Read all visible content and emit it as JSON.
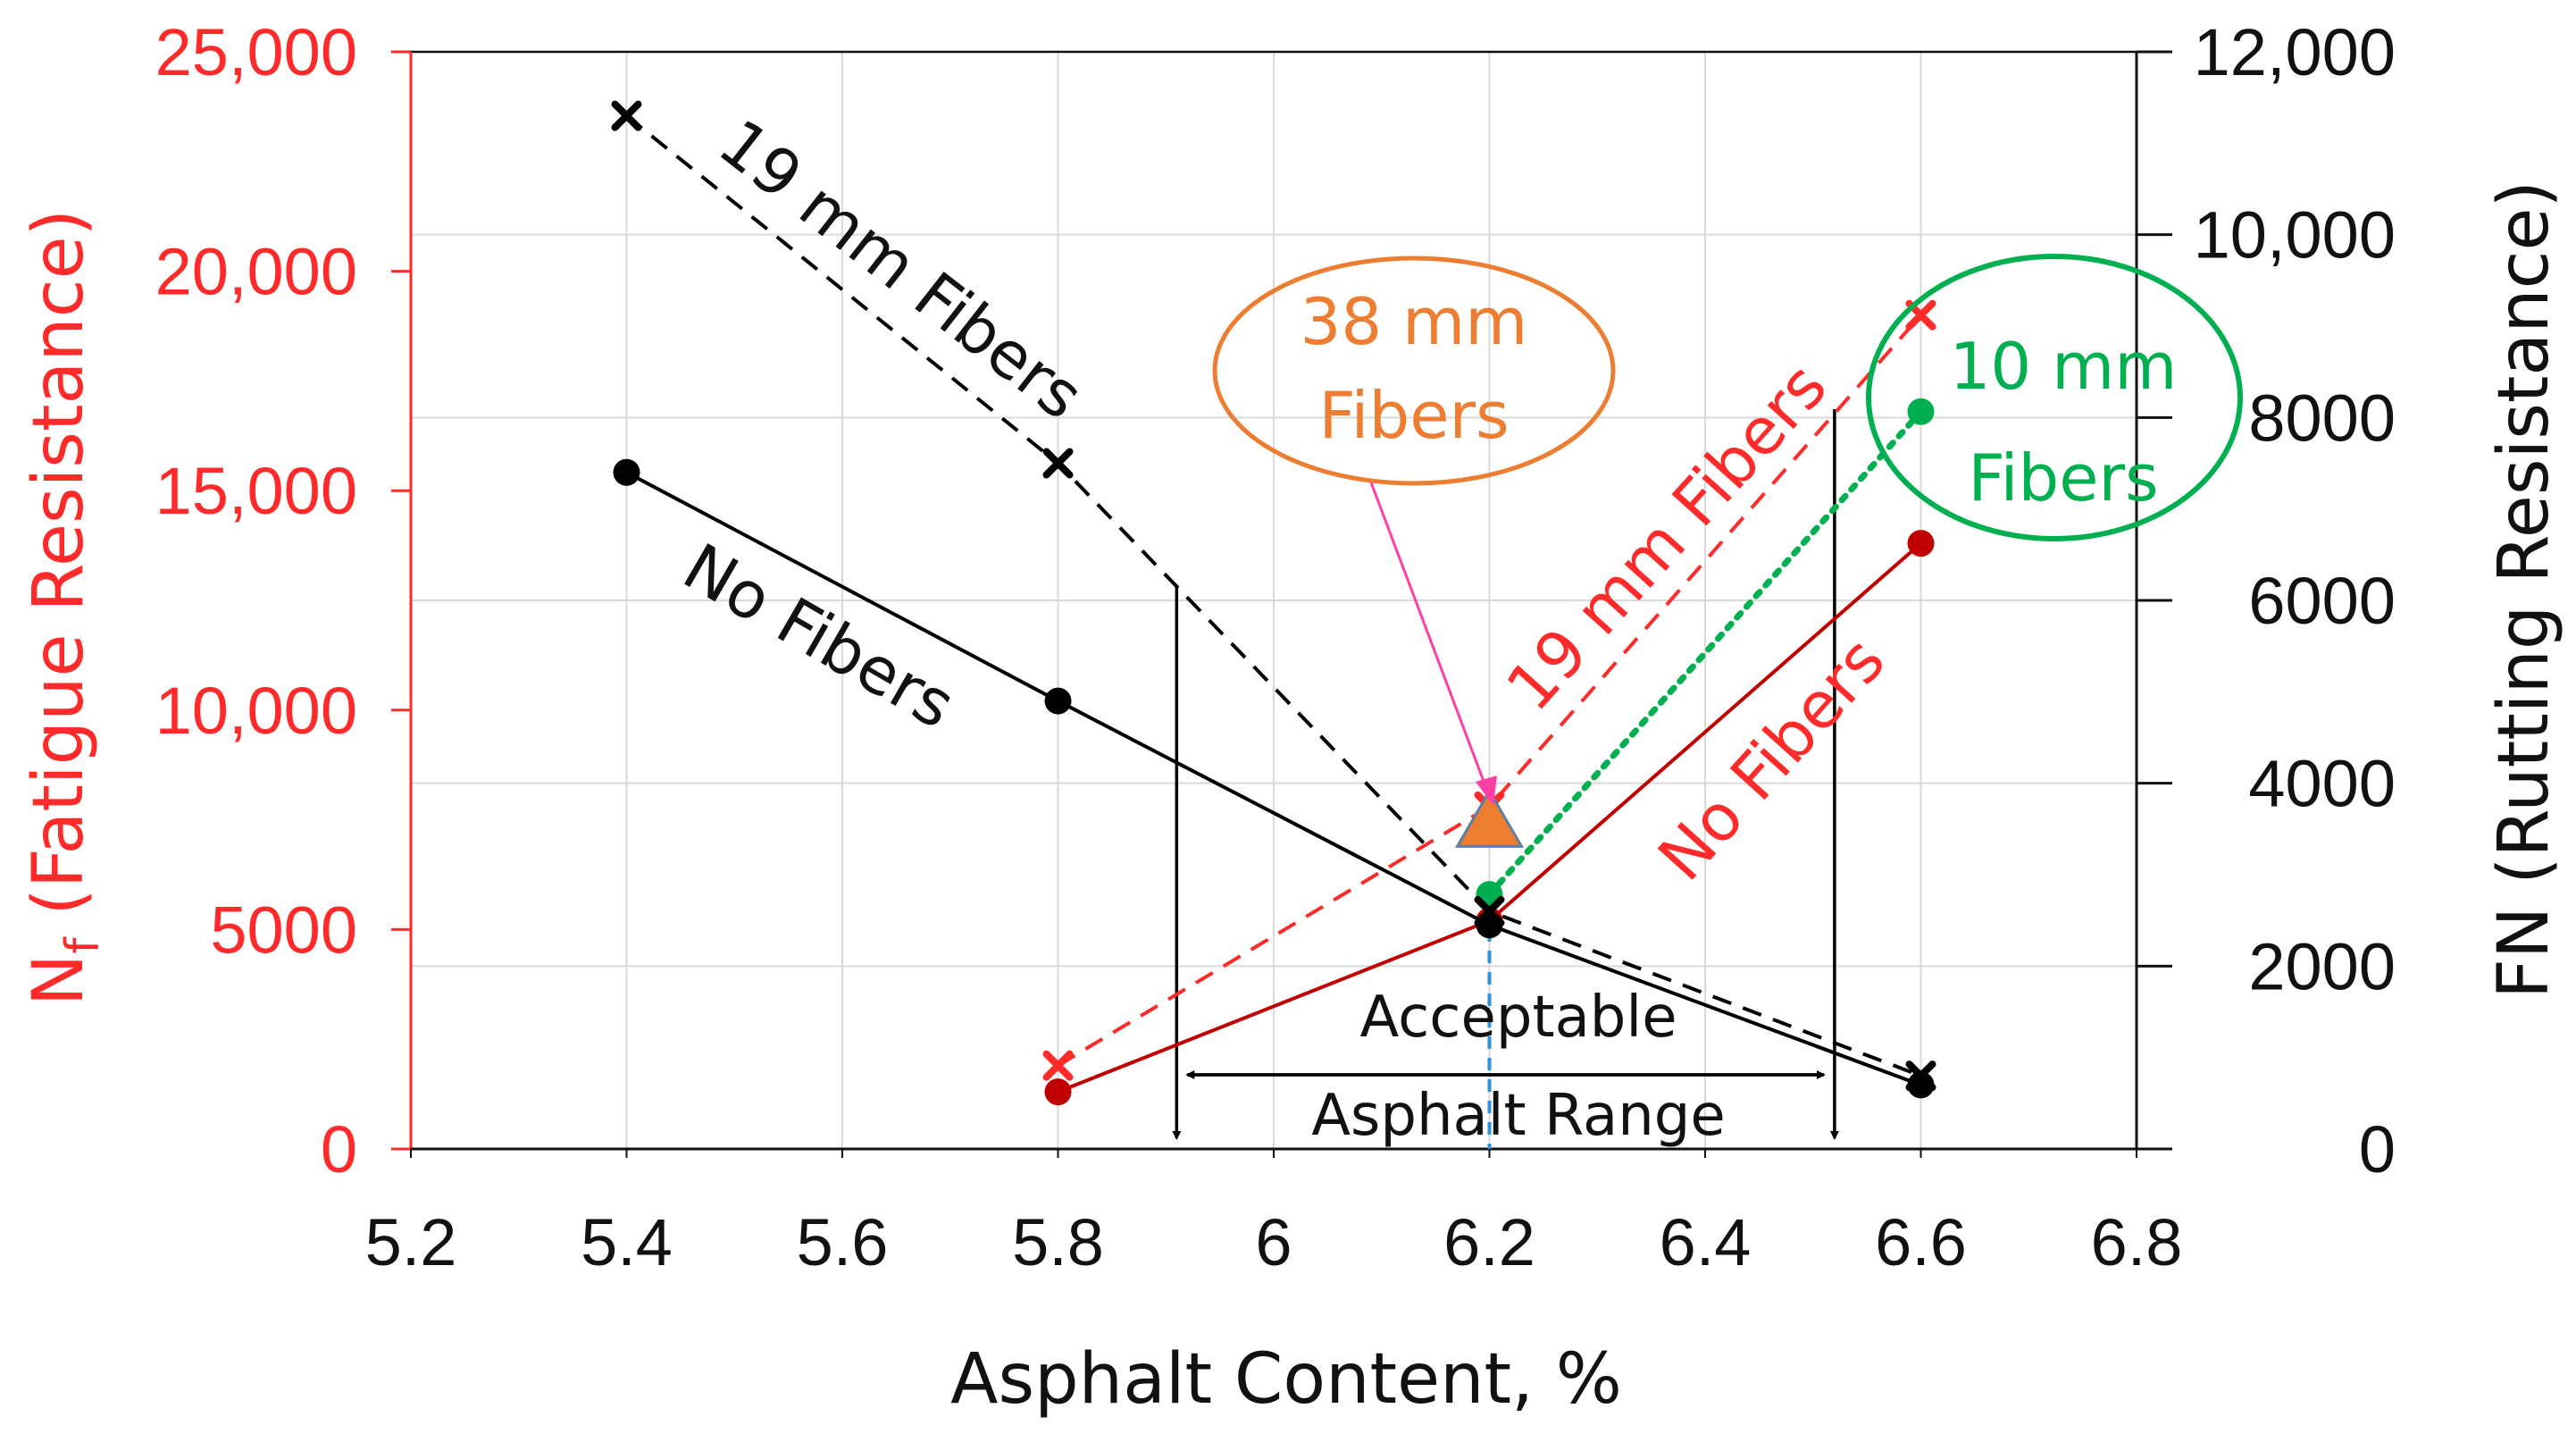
{
  "chart_data": {
    "type": "line",
    "title": "",
    "xlabel": "Asphalt Content, %",
    "ylabel_left_main": "N",
    "ylabel_left_sub": "f",
    "ylabel_left_rest": " (Fatigue Resistance)",
    "ylabel_right": "FN (Rutting Resistance)",
    "xlim": [
      5.2,
      6.8
    ],
    "ylim_left": [
      0,
      25000
    ],
    "ylim_right": [
      0,
      12000
    ],
    "x_ticks": [
      "5.2",
      "5.4",
      "5.6",
      "5.8",
      "6",
      "6.2",
      "6.4",
      "6.6",
      "6.8"
    ],
    "x_tick_values": [
      5.2,
      5.4,
      5.6,
      5.8,
      6.0,
      6.2,
      6.4,
      6.6,
      6.8
    ],
    "y_left_ticks": [
      "0",
      "5000",
      "10,000",
      "15,000",
      "20,000",
      "25,000"
    ],
    "y_left_tick_values": [
      0,
      5000,
      10000,
      15000,
      20000,
      25000
    ],
    "y_right_ticks": [
      "0",
      "2000",
      "4000",
      "6000",
      "8000",
      "10,000",
      "12,000"
    ],
    "y_right_tick_values": [
      0,
      2000,
      4000,
      6000,
      8000,
      10000,
      12000
    ],
    "grid": true,
    "series": [
      {
        "name": "No Fibers (Nf)",
        "axis": "left",
        "color": "#c00000",
        "style": "solid",
        "marker": "circle",
        "x": [
          5.8,
          6.2,
          6.6
        ],
        "y": [
          1300,
          5200,
          13800
        ]
      },
      {
        "name": "19 mm Fibers (Nf)",
        "axis": "left",
        "color": "#ff2a2a",
        "style": "dashed",
        "marker": "x",
        "x": [
          5.8,
          6.2,
          6.6
        ],
        "y": [
          1900,
          7800,
          19000
        ]
      },
      {
        "name": "10 mm Fibers (Nf)",
        "axis": "left",
        "color": "#00b050",
        "style": "dotted",
        "marker": "circle",
        "x": [
          6.2,
          6.6
        ],
        "y": [
          5800,
          16800
        ]
      },
      {
        "name": "No Fibers (FN)",
        "axis": "right",
        "color": "#000000",
        "style": "solid",
        "marker": "circle",
        "x": [
          5.4,
          5.8,
          6.2,
          6.6
        ],
        "y": [
          7400,
          4900,
          2450,
          700
        ]
      },
      {
        "name": "19 mm Fibers (FN)",
        "axis": "right",
        "color": "#000000",
        "style": "dashed",
        "marker": "x",
        "x": [
          5.4,
          5.8,
          6.2,
          6.6
        ],
        "y": [
          11300,
          7500,
          2600,
          800
        ]
      },
      {
        "name": "38 mm Fibers (Nf)",
        "axis": "left",
        "color": "#ed7d31",
        "style": "none",
        "marker": "triangle",
        "x": [
          6.2
        ],
        "y": [
          7300
        ]
      }
    ],
    "acceptable_range": {
      "label_line1": "Acceptable",
      "label_line2": "Asphalt Range",
      "x_start": 5.91,
      "x_end": 6.52,
      "optimum_x": 6.2
    },
    "annotations": {
      "fn_19mm": "19 mm Fibers",
      "fn_none": "No Fibers",
      "nf_19mm": "19 mm Fibers",
      "nf_none": "No Fibers",
      "fib38_line1": "38 mm",
      "fib38_line2": "Fibers",
      "fib10_line1": "10 mm",
      "fib10_line2": "Fibers"
    },
    "colors": {
      "left_axis": "#ff2a2a",
      "right_axis": "#111111",
      "fib38": "#ed7d31",
      "fib10": "#00b050",
      "arrow38": "#ff3fa4",
      "optimum": "#2f8fdf"
    }
  }
}
